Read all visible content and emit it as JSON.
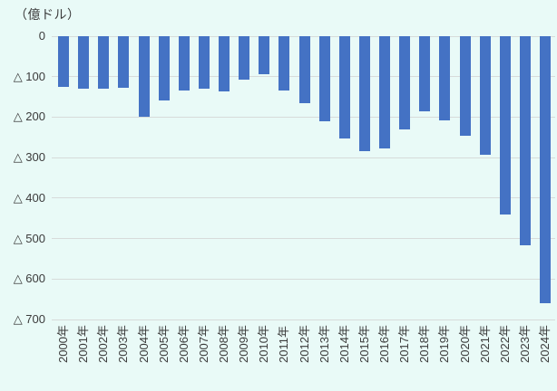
{
  "chart_data": {
    "type": "bar",
    "unit_label": "（億ドル）",
    "categories": [
      "2000年",
      "2001年",
      "2002年",
      "2003年",
      "2004年",
      "2005年",
      "2006年",
      "2007年",
      "2008年",
      "2009年",
      "2010年",
      "2011年",
      "2012年",
      "2013年",
      "2014年",
      "2015年",
      "2016年",
      "2017年",
      "2018年",
      "2019年",
      "2020年",
      "2021年",
      "2022年",
      "2023年",
      "2024年"
    ],
    "values": [
      -125,
      -130,
      -130,
      -128,
      -200,
      -158,
      -135,
      -130,
      -136,
      -107,
      -95,
      -135,
      -166,
      -210,
      -253,
      -285,
      -277,
      -230,
      -185,
      -207,
      -246,
      -293,
      -440,
      -516,
      -660
    ],
    "xlabel": "",
    "ylabel": "（億ドル）",
    "ylim": [
      -700,
      0
    ],
    "yticks": [
      {
        "value": 0,
        "label": "0"
      },
      {
        "value": -100,
        "label": "△ 100"
      },
      {
        "value": -200,
        "label": "△ 200"
      },
      {
        "value": -300,
        "label": "△ 300"
      },
      {
        "value": -400,
        "label": "△ 400"
      },
      {
        "value": -500,
        "label": "△ 500"
      },
      {
        "value": -600,
        "label": "△ 600"
      },
      {
        "value": -700,
        "label": "△ 700"
      }
    ],
    "grid": "horizontal",
    "legend": "none",
    "colors": {
      "bar": "#4472C4",
      "background": "#E9FAF7",
      "gridline": "#D7DBDA",
      "text": "#3B3B3B"
    }
  }
}
